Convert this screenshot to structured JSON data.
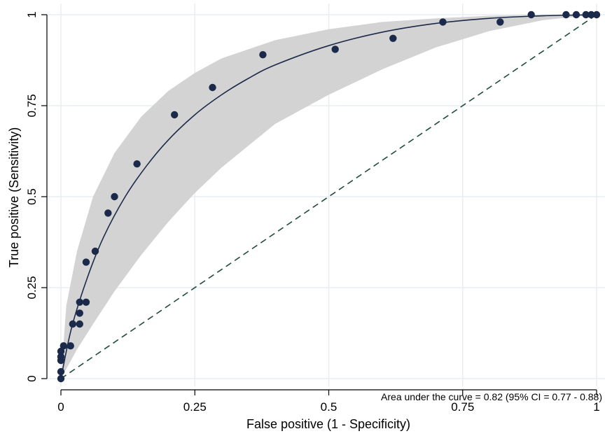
{
  "chart_data": {
    "type": "scatter",
    "title": "",
    "xlabel": "False positive (1 - Specificity)",
    "ylabel": "True positive (Sensitivity)",
    "xlim": [
      0,
      1
    ],
    "ylim": [
      0,
      1
    ],
    "x_ticks": [
      {
        "value": 0,
        "label": "0"
      },
      {
        "value": 0.25,
        "label": "0.25"
      },
      {
        "value": 0.5,
        "label": "0.5"
      },
      {
        "value": 0.75,
        "label": "0.75"
      },
      {
        "value": 1,
        "label": "1"
      }
    ],
    "y_ticks": [
      {
        "value": 0,
        "label": "0"
      },
      {
        "value": 0.25,
        "label": "0.25"
      },
      {
        "value": 0.5,
        "label": "0.5"
      },
      {
        "value": 0.75,
        "label": "0.75"
      },
      {
        "value": 1,
        "label": "1"
      }
    ],
    "grid": true,
    "annotation": "Area under the curve = 0.82 (95% CI = 0.77 - 0.88)",
    "colors": {
      "points": "#1b2a4a",
      "curve": "#1b2a4a",
      "ci_band": "#d3d3d3",
      "reference_line": "#1f4d3a",
      "grid": "#e6eef2"
    },
    "points": [
      {
        "x": 0.0,
        "y": 0.0
      },
      {
        "x": 0.0,
        "y": 0.019
      },
      {
        "x": 0.0,
        "y": 0.05
      },
      {
        "x": 0.0,
        "y": 0.06
      },
      {
        "x": 0.0,
        "y": 0.075
      },
      {
        "x": 0.005,
        "y": 0.09
      },
      {
        "x": 0.018,
        "y": 0.09
      },
      {
        "x": 0.022,
        "y": 0.15
      },
      {
        "x": 0.035,
        "y": 0.15
      },
      {
        "x": 0.035,
        "y": 0.18
      },
      {
        "x": 0.035,
        "y": 0.21
      },
      {
        "x": 0.047,
        "y": 0.21
      },
      {
        "x": 0.047,
        "y": 0.32
      },
      {
        "x": 0.064,
        "y": 0.35
      },
      {
        "x": 0.088,
        "y": 0.455
      },
      {
        "x": 0.1,
        "y": 0.5
      },
      {
        "x": 0.142,
        "y": 0.59
      },
      {
        "x": 0.212,
        "y": 0.725
      },
      {
        "x": 0.283,
        "y": 0.8
      },
      {
        "x": 0.377,
        "y": 0.89
      },
      {
        "x": 0.512,
        "y": 0.905
      },
      {
        "x": 0.62,
        "y": 0.935
      },
      {
        "x": 0.713,
        "y": 0.98
      },
      {
        "x": 0.82,
        "y": 0.98
      },
      {
        "x": 0.878,
        "y": 1.0
      },
      {
        "x": 0.943,
        "y": 1.0
      },
      {
        "x": 0.962,
        "y": 1.0
      },
      {
        "x": 0.98,
        "y": 1.0
      },
      {
        "x": 0.99,
        "y": 1.0
      },
      {
        "x": 1.0,
        "y": 1.0
      }
    ],
    "fitted_curve": [
      {
        "x": 0.0,
        "y": 0.0
      },
      {
        "x": 0.02,
        "y": 0.14
      },
      {
        "x": 0.05,
        "y": 0.28
      },
      {
        "x": 0.08,
        "y": 0.39
      },
      {
        "x": 0.12,
        "y": 0.5
      },
      {
        "x": 0.16,
        "y": 0.585
      },
      {
        "x": 0.2,
        "y": 0.655
      },
      {
        "x": 0.25,
        "y": 0.725
      },
      {
        "x": 0.3,
        "y": 0.78
      },
      {
        "x": 0.35,
        "y": 0.825
      },
      {
        "x": 0.4,
        "y": 0.862
      },
      {
        "x": 0.5,
        "y": 0.915
      },
      {
        "x": 0.6,
        "y": 0.952
      },
      {
        "x": 0.7,
        "y": 0.976
      },
      {
        "x": 0.8,
        "y": 0.99
      },
      {
        "x": 0.9,
        "y": 0.997
      },
      {
        "x": 1.0,
        "y": 1.0
      }
    ],
    "ci_band": {
      "upper": [
        {
          "x": 0.0,
          "y": 0.0
        },
        {
          "x": 0.01,
          "y": 0.2
        },
        {
          "x": 0.03,
          "y": 0.35
        },
        {
          "x": 0.06,
          "y": 0.5
        },
        {
          "x": 0.1,
          "y": 0.62
        },
        {
          "x": 0.15,
          "y": 0.72
        },
        {
          "x": 0.2,
          "y": 0.79
        },
        {
          "x": 0.25,
          "y": 0.84
        },
        {
          "x": 0.3,
          "y": 0.88
        },
        {
          "x": 0.4,
          "y": 0.93
        },
        {
          "x": 0.5,
          "y": 0.96
        },
        {
          "x": 0.6,
          "y": 0.98
        },
        {
          "x": 0.7,
          "y": 0.99
        },
        {
          "x": 0.8,
          "y": 0.997
        },
        {
          "x": 0.9,
          "y": 1.0
        },
        {
          "x": 1.0,
          "y": 1.0
        }
      ],
      "lower": [
        {
          "x": 0.0,
          "y": 0.0
        },
        {
          "x": 0.03,
          "y": 0.08
        },
        {
          "x": 0.06,
          "y": 0.15
        },
        {
          "x": 0.1,
          "y": 0.24
        },
        {
          "x": 0.15,
          "y": 0.34
        },
        {
          "x": 0.2,
          "y": 0.43
        },
        {
          "x": 0.25,
          "y": 0.51
        },
        {
          "x": 0.3,
          "y": 0.58
        },
        {
          "x": 0.4,
          "y": 0.7
        },
        {
          "x": 0.5,
          "y": 0.78
        },
        {
          "x": 0.6,
          "y": 0.85
        },
        {
          "x": 0.7,
          "y": 0.91
        },
        {
          "x": 0.8,
          "y": 0.955
        },
        {
          "x": 0.9,
          "y": 0.985
        },
        {
          "x": 1.0,
          "y": 1.0
        }
      ]
    },
    "reference_line": [
      {
        "x": 0,
        "y": 0
      },
      {
        "x": 1,
        "y": 1
      }
    ]
  }
}
